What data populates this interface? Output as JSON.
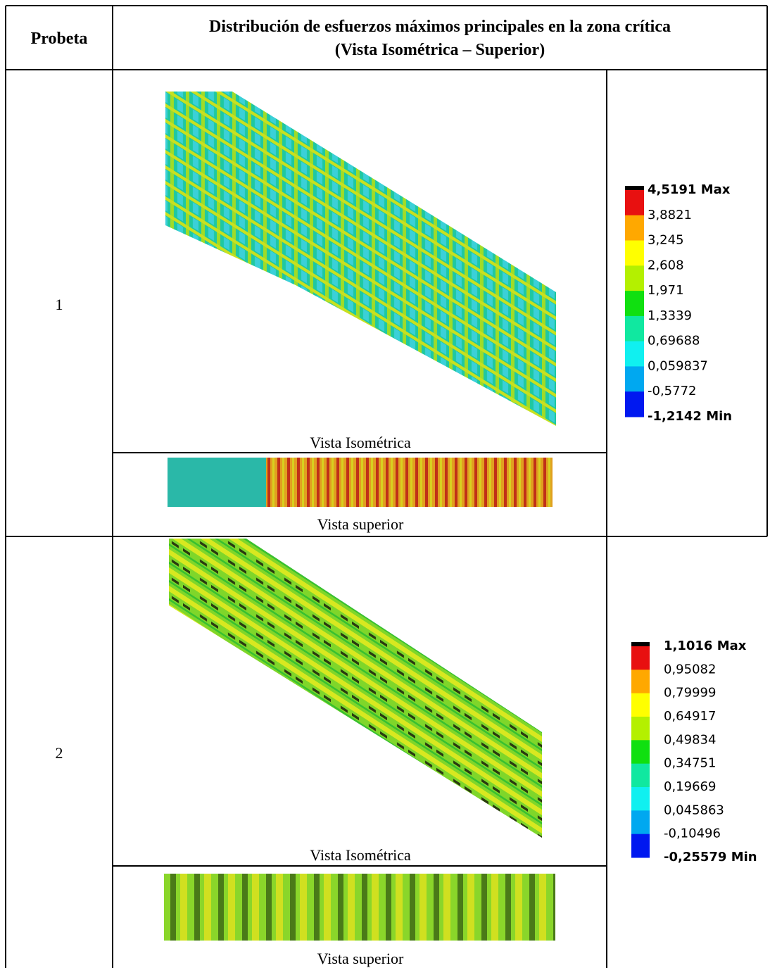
{
  "header": {
    "probeta": "Probeta",
    "title": "Distribución de esfuerzos máximos principales en la zona crítica",
    "subtitle": "(Vista Isométrica – Superior)"
  },
  "rows": [
    {
      "probeta": "1",
      "iso_caption": "Vista Isométrica",
      "top_caption": "Vista superior",
      "legend": [
        "4,5191 Max",
        "3,8821",
        "3,245",
        "2,608",
        "1,971",
        "1,3339",
        "0,69688",
        "0,059837",
        "-0,5772",
        "-1,2142 Min"
      ]
    },
    {
      "probeta": "2",
      "iso_caption": "Vista Isométrica",
      "top_caption": "Vista superior",
      "legend": [
        "1,1016 Max",
        "0,95082",
        "0,79999",
        "0,64917",
        "0,49834",
        "0,34751",
        "0,19669",
        "0,045863",
        "-0,10496",
        "-0,25579 Min"
      ]
    }
  ]
}
